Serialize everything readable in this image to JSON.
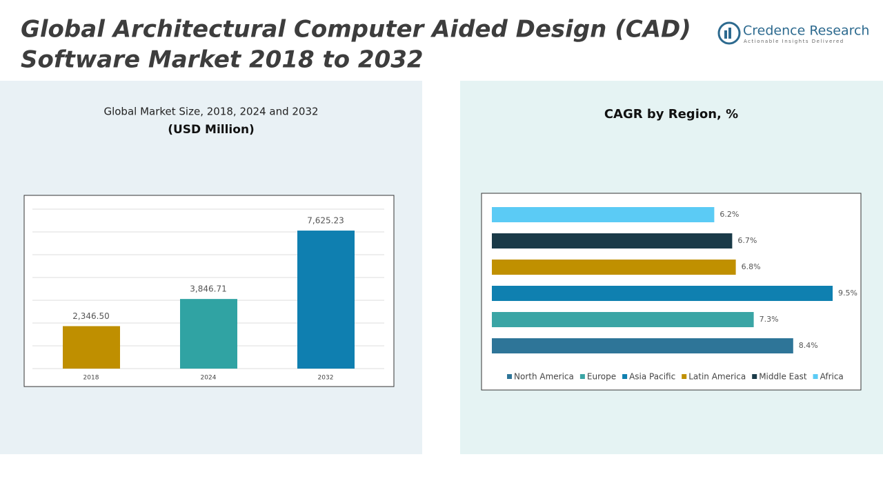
{
  "header": {
    "title_line1": "Global Architectural Computer Aided Design (CAD)",
    "title_line2": "Software Market 2018 to 2032"
  },
  "logo": {
    "name": "Credence Research",
    "tagline": "Actionable Insights Delivered"
  },
  "chart_data": [
    {
      "type": "bar",
      "title": "Global Market Size, 2018, 2024 and 2032",
      "subtitle": "(USD Million)",
      "categories": [
        "2018",
        "2024",
        "2032"
      ],
      "values": [
        2346.5,
        3846.71,
        7625.23
      ],
      "value_labels": [
        "2,346.50",
        "3,846.71",
        "7,625.23"
      ],
      "colors": [
        "#bf8f00",
        "#30a3a3",
        "#0f7fb0"
      ],
      "ylim": [
        0,
        9000
      ],
      "grid": true
    },
    {
      "type": "barh",
      "title": "CAGR by Region, %",
      "series": [
        {
          "name": "North America",
          "color": "#2e7598",
          "values": [
            8.4
          ],
          "value_labels": [
            "8.4%"
          ]
        },
        {
          "name": "Europe",
          "color": "#3aa5a5",
          "values": [
            7.3
          ],
          "value_labels": [
            "7.3%"
          ]
        },
        {
          "name": "Asia Pacific",
          "color": "#0f80b0",
          "values": [
            9.5
          ],
          "value_labels": [
            "9.5%"
          ]
        },
        {
          "name": "Latin America",
          "color": "#c09000",
          "values": [
            6.8
          ],
          "value_labels": [
            "6.8%"
          ]
        },
        {
          "name": "Middle East",
          "color": "#1a3a48",
          "values": [
            6.7
          ],
          "value_labels": [
            "6.7%"
          ]
        },
        {
          "name": "Africa",
          "color": "#5bcbf5",
          "values": [
            6.2
          ],
          "value_labels": [
            "6.2%"
          ]
        }
      ],
      "xlim": [
        0,
        10
      ],
      "legend": "bottom"
    }
  ]
}
